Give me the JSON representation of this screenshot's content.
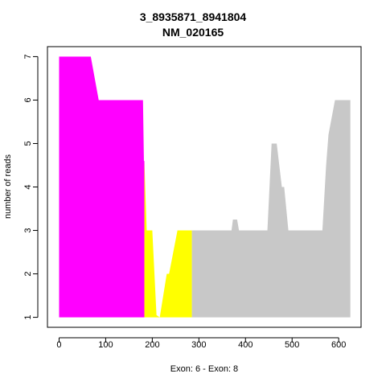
{
  "chart_data": {
    "type": "area",
    "title": "3_8935871_8941804",
    "subtitle": "NM_020165",
    "xlabel": "Exon: 6 - Exon: 8",
    "ylabel": "number of reads",
    "xlim": [
      -25,
      648
    ],
    "ylim": [
      0.77,
      7.23
    ],
    "x_ticks": [
      0,
      100,
      200,
      300,
      400,
      500,
      600
    ],
    "y_ticks": [
      1,
      2,
      3,
      4,
      5,
      6,
      7
    ],
    "grid": false,
    "series": [
      {
        "color": "#ff00ff",
        "points": [
          [
            0,
            7
          ],
          [
            68,
            7
          ],
          [
            85,
            6
          ],
          [
            180,
            6
          ],
          [
            182,
            4.6
          ],
          [
            183,
            4.6
          ]
        ]
      },
      {
        "color": "#ffff00",
        "points": [
          [
            183,
            4.6
          ],
          [
            188,
            3
          ],
          [
            200,
            3
          ],
          [
            209,
            1.05
          ],
          [
            216,
            1.0
          ],
          [
            225,
            1.6
          ],
          [
            231,
            2
          ],
          [
            236,
            2
          ],
          [
            254,
            3
          ],
          [
            285,
            3
          ]
        ]
      },
      {
        "color": "#c8c8c8",
        "points": [
          [
            285,
            3
          ],
          [
            370,
            3
          ],
          [
            373,
            3.25
          ],
          [
            382,
            3.25
          ],
          [
            386,
            3
          ],
          [
            447,
            3
          ],
          [
            456,
            5
          ],
          [
            467,
            5
          ],
          [
            478,
            4
          ],
          [
            483,
            4
          ],
          [
            492,
            3
          ],
          [
            565,
            3
          ],
          [
            573,
            4.5
          ],
          [
            578,
            5.2
          ],
          [
            592,
            6
          ],
          [
            595,
            6
          ],
          [
            625,
            6
          ]
        ]
      }
    ]
  }
}
